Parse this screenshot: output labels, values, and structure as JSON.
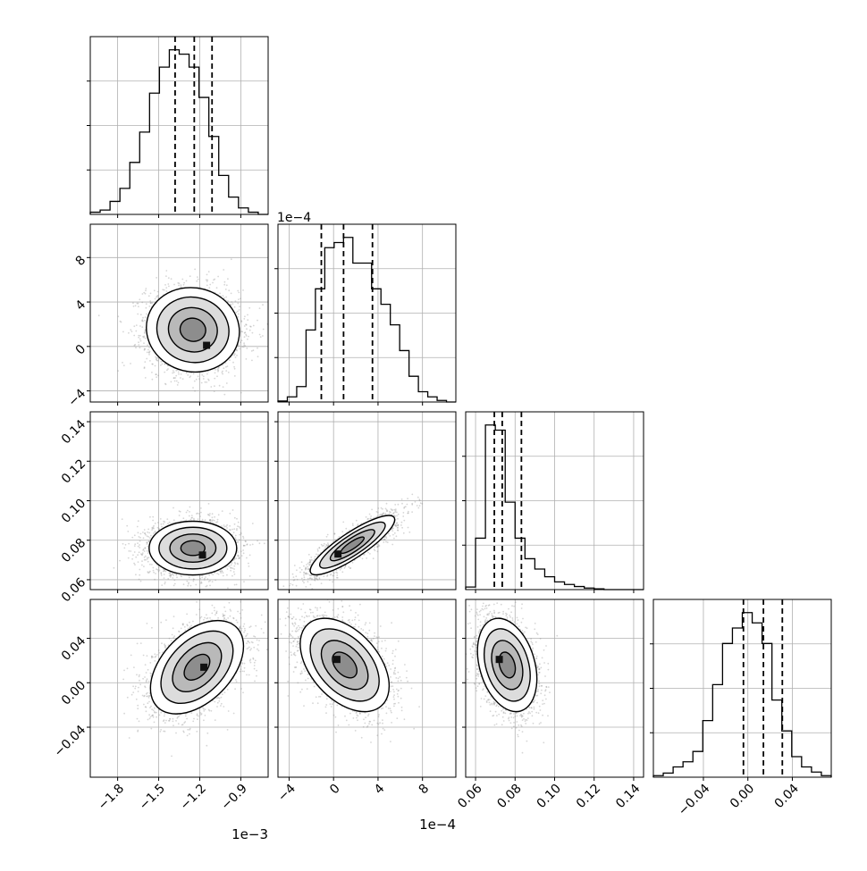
{
  "chart_data": {
    "type": "corner",
    "params": [
      {
        "id": "p0",
        "range": [
          -2.0,
          -0.7
        ],
        "ticks": [
          -1.8,
          -1.5,
          -1.2,
          -0.9
        ],
        "tick_labels": [
          "−1.8",
          "−1.5",
          "−1.2",
          "−0.9"
        ],
        "offset_text": "1e−3",
        "hist": [
          0.5,
          1,
          3,
          6,
          12,
          19,
          28,
          34,
          38,
          37,
          34,
          27,
          18,
          9,
          4,
          1.5,
          0.5,
          0
        ],
        "quantiles": [
          -1.38,
          -1.24,
          -1.11
        ]
      },
      {
        "id": "p1",
        "range": [
          -5,
          11
        ],
        "ticks": [
          -4,
          0,
          4,
          8
        ],
        "tick_labels": [
          "−4",
          "0",
          "4",
          "8"
        ],
        "offset_text": "1e−4",
        "top_offset_text": "1e−4",
        "hist": [
          0.2,
          1,
          3,
          14,
          22,
          30,
          31,
          32,
          27,
          27,
          22,
          19,
          15,
          10,
          5,
          2,
          1,
          0.3,
          0
        ],
        "quantiles": [
          -1.1,
          0.9,
          3.5
        ]
      },
      {
        "id": "p2",
        "range": [
          0.055,
          0.145
        ],
        "ticks": [
          0.06,
          0.08,
          0.1,
          0.12,
          0.14
        ],
        "tick_labels": [
          "0.06",
          "0.08",
          "0.10",
          "0.12",
          "0.14"
        ],
        "offset_text": "",
        "hist": [
          0.5,
          10,
          32,
          31,
          17,
          10,
          6,
          4,
          2.5,
          1.5,
          1,
          0.6,
          0.3,
          0.15,
          0,
          0,
          0,
          0
        ],
        "quantiles": [
          0.0695,
          0.0735,
          0.0832
        ]
      },
      {
        "id": "p3",
        "range": [
          -0.085,
          0.075
        ],
        "ticks": [
          -0.04,
          0.0,
          0.04
        ],
        "tick_labels": [
          "−0.04",
          "0.00",
          "0.04"
        ],
        "offset_text": "",
        "hist": [
          0.3,
          0.8,
          2,
          3,
          5,
          11,
          18,
          26,
          29,
          32,
          30,
          26,
          15,
          9,
          4,
          2,
          1,
          0.3
        ],
        "quantiles": [
          -0.004,
          0.014,
          0.031
        ]
      }
    ],
    "pairs": [
      {
        "x": 0,
        "y": 1,
        "mean": [
          -1.25,
          1.5
        ],
        "sd": [
          0.17,
          1.9
        ],
        "rho": -0.05,
        "peak": [
          -1.15,
          0.1
        ],
        "n": 2600
      },
      {
        "x": 0,
        "y": 2,
        "mean": [
          -1.25,
          0.076
        ],
        "sd": [
          0.16,
          0.0068
        ],
        "rho": 0.0,
        "peak": [
          -1.18,
          0.0725
        ],
        "n": 2600
      },
      {
        "x": 1,
        "y": 2,
        "mean": [
          1.7,
          0.0775
        ],
        "sd": [
          1.9,
          0.0075
        ],
        "rho": 0.86,
        "peak": [
          0.4,
          0.073
        ],
        "n": 2600
      },
      {
        "x": 0,
        "y": 3,
        "mean": [
          -1.22,
          0.014
        ],
        "sd": [
          0.17,
          0.021
        ],
        "rho": 0.45,
        "peak": [
          -1.17,
          0.014
        ],
        "n": 2600
      },
      {
        "x": 1,
        "y": 3,
        "mean": [
          1.0,
          0.016
        ],
        "sd": [
          2.0,
          0.021
        ],
        "rho": -0.45,
        "peak": [
          0.3,
          0.021
        ],
        "n": 2600
      },
      {
        "x": 2,
        "y": 3,
        "mean": [
          0.076,
          0.016
        ],
        "sd": [
          0.0075,
          0.021
        ],
        "rho": -0.3,
        "peak": [
          0.072,
          0.021
        ],
        "n": 2600
      }
    ],
    "grid": true,
    "hist_style": "step",
    "quantile_style": "dashed"
  }
}
